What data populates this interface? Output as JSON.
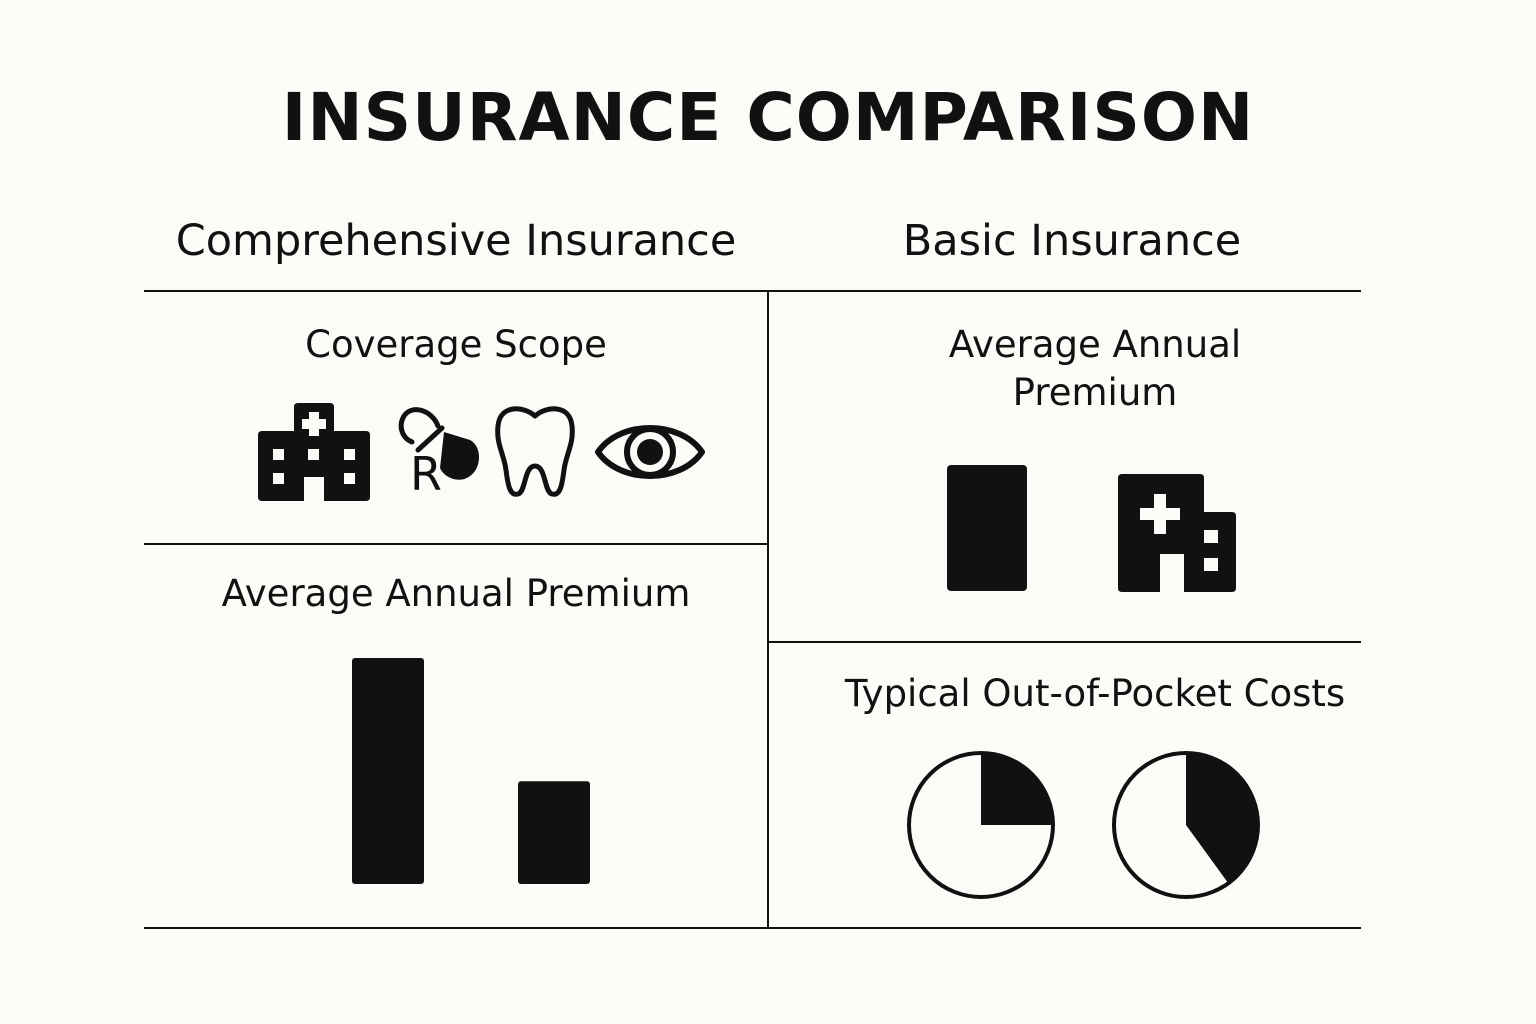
{
  "title": "INSURANCE COMPARISON",
  "columns": {
    "left": "Comprehensive Insurance",
    "right": "Basic Insurance"
  },
  "left_panel": {
    "coverage_label": "Coverage Scope",
    "coverage_icons": [
      "hospital-icon",
      "prescription-icon",
      "tooth-icon",
      "eye-icon"
    ],
    "prescription_letter": "R",
    "premium_label": "Average Annual Premium",
    "premium_bars": [
      2.2,
      1.0
    ]
  },
  "right_panel": {
    "premium_label_line1": "Average Annual",
    "premium_label_line2": "Premium",
    "premium_icons": [
      "card-icon",
      "hospital-icon"
    ],
    "oop_label": "Typical Out-of-Pocket Costs",
    "oop_fractions": [
      0.25,
      0.4
    ]
  },
  "colors": {
    "background": "#fcfbf7",
    "ink": "#111111"
  }
}
